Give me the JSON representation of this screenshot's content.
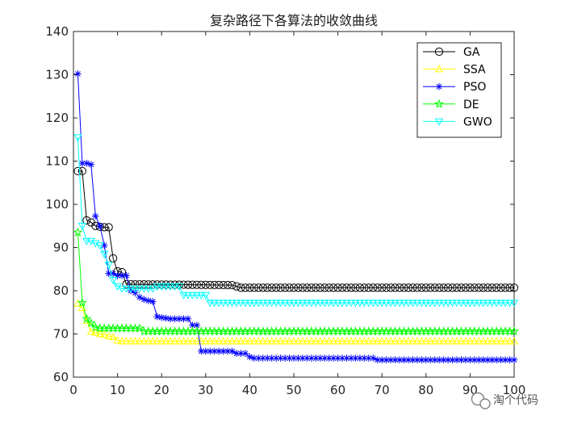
{
  "chart_data": {
    "type": "line",
    "title": "复杂路径下各算法的收敛曲线",
    "xlabel": "",
    "ylabel": "",
    "xlim": [
      0,
      100
    ],
    "ylim": [
      60,
      140
    ],
    "x_ticks": [
      "0",
      "10",
      "20",
      "30",
      "40",
      "50",
      "60",
      "70",
      "80",
      "90",
      "100"
    ],
    "y_ticks": [
      "60",
      "70",
      "80",
      "90",
      "100",
      "110",
      "120",
      "130",
      "140"
    ],
    "grid": false,
    "legend_position": "top-right",
    "series": [
      {
        "name": "GA",
        "color": "#000000",
        "marker": "circle",
        "points": [
          [
            1,
            107.7
          ],
          [
            2,
            107.7
          ],
          [
            3,
            96.3
          ],
          [
            4,
            95.8
          ],
          [
            5,
            95.0
          ],
          [
            6,
            94.8
          ],
          [
            7,
            94.7
          ],
          [
            8,
            94.7
          ],
          [
            9,
            87.5
          ],
          [
            10,
            84.5
          ],
          [
            11,
            84.3
          ],
          [
            12,
            81.5
          ],
          [
            36,
            81.3
          ],
          [
            37,
            81.0
          ],
          [
            38,
            80.7
          ],
          [
            100,
            80.7
          ]
        ]
      },
      {
        "name": "SSA",
        "color": "#ffff00",
        "marker": "triangle-up",
        "points": [
          [
            1,
            77.0
          ],
          [
            2,
            76.0
          ],
          [
            3,
            73.0
          ],
          [
            4,
            70.5
          ],
          [
            5,
            70.3
          ],
          [
            6,
            70.0
          ],
          [
            7,
            69.8
          ],
          [
            8,
            69.5
          ],
          [
            9,
            69.3
          ],
          [
            10,
            68.5
          ],
          [
            11,
            68.3
          ],
          [
            100,
            68.3
          ]
        ]
      },
      {
        "name": "PSO",
        "color": "#0000ff",
        "marker": "asterisk",
        "points": [
          [
            1,
            130.2
          ],
          [
            2,
            109.5
          ],
          [
            3,
            109.5
          ],
          [
            4,
            109.2
          ],
          [
            5,
            97.3
          ],
          [
            6,
            95.0
          ],
          [
            7,
            90.5
          ],
          [
            8,
            84.0
          ],
          [
            9,
            84.0
          ],
          [
            10,
            83.5
          ],
          [
            11,
            83.5
          ],
          [
            12,
            83.5
          ],
          [
            13,
            80.0
          ],
          [
            14,
            79.5
          ],
          [
            15,
            78.5
          ],
          [
            16,
            78.0
          ],
          [
            17,
            77.7
          ],
          [
            18,
            77.5
          ],
          [
            19,
            74.0
          ],
          [
            20,
            73.8
          ],
          [
            22,
            73.5
          ],
          [
            26,
            73.5
          ],
          [
            27,
            72.0
          ],
          [
            28,
            72.0
          ],
          [
            29,
            66.0
          ],
          [
            36,
            66.0
          ],
          [
            37,
            65.5
          ],
          [
            39,
            65.5
          ],
          [
            40,
            64.7
          ],
          [
            41,
            64.4
          ],
          [
            68,
            64.4
          ],
          [
            69,
            64.0
          ],
          [
            100,
            64.0
          ]
        ]
      },
      {
        "name": "DE",
        "color": "#00ff00",
        "marker": "star",
        "points": [
          [
            1,
            93.5
          ],
          [
            2,
            77.2
          ],
          [
            3,
            73.5
          ],
          [
            4,
            72.5
          ],
          [
            5,
            71.5
          ],
          [
            6,
            71.3
          ],
          [
            15,
            71.3
          ],
          [
            16,
            70.6
          ],
          [
            100,
            70.6
          ]
        ]
      },
      {
        "name": "GWO",
        "color": "#00ffff",
        "marker": "triangle-down",
        "points": [
          [
            1,
            115.5
          ],
          [
            2,
            95.0
          ],
          [
            3,
            91.5
          ],
          [
            4,
            91.5
          ],
          [
            5,
            91.0
          ],
          [
            6,
            90.5
          ],
          [
            7,
            88.5
          ],
          [
            8,
            86.0
          ],
          [
            9,
            82.5
          ],
          [
            10,
            81.0
          ],
          [
            11,
            80.5
          ],
          [
            12,
            80.5
          ],
          [
            18,
            80.5
          ],
          [
            19,
            81.0
          ],
          [
            24,
            81.0
          ],
          [
            25,
            79.0
          ],
          [
            30,
            79.0
          ],
          [
            31,
            77.2
          ],
          [
            100,
            77.2
          ]
        ]
      }
    ]
  },
  "watermark": {
    "text": "淘个代码"
  }
}
